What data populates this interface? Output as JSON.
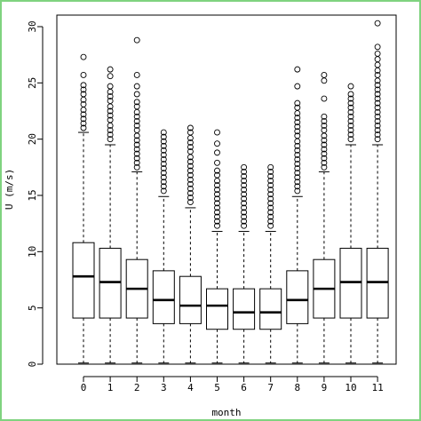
{
  "chart_data": {
    "type": "boxplot",
    "xlabel": "month",
    "ylabel": "U (m/s)",
    "ylim": [
      0,
      30
    ],
    "yticks": [
      "0",
      "5",
      "10",
      "15",
      "20",
      "25",
      "30"
    ],
    "categories": [
      "0",
      "1",
      "2",
      "3",
      "4",
      "5",
      "6",
      "7",
      "8",
      "9",
      "10",
      "11"
    ],
    "boxes": [
      {
        "q1": 4.1,
        "median": 7.8,
        "q3": 10.8,
        "whisker_low": 0.1,
        "whisker_high": 20.6,
        "outliers": [
          21.0,
          21.4,
          21.8,
          22.2,
          22.6,
          23.1,
          23.5,
          24.0,
          24.4,
          24.8,
          25.7,
          27.3
        ]
      },
      {
        "q1": 4.1,
        "median": 7.3,
        "q3": 10.3,
        "whisker_low": 0.1,
        "whisker_high": 19.5,
        "outliers": [
          20.0,
          20.4,
          20.8,
          21.2,
          21.7,
          22.1,
          22.5,
          22.9,
          23.4,
          23.8,
          24.2,
          24.7,
          25.6,
          26.2
        ]
      },
      {
        "q1": 4.1,
        "median": 6.7,
        "q3": 9.3,
        "whisker_low": 0.1,
        "whisker_high": 17.1,
        "outliers": [
          17.5,
          17.9,
          18.3,
          18.7,
          19.1,
          19.5,
          19.9,
          20.3,
          20.8,
          21.2,
          21.6,
          22.0,
          22.4,
          22.9,
          23.3,
          24.0,
          24.7,
          25.7,
          28.8
        ]
      },
      {
        "q1": 3.6,
        "median": 5.7,
        "q3": 8.3,
        "whisker_low": 0.1,
        "whisker_high": 14.9,
        "outliers": [
          15.4,
          15.8,
          16.2,
          16.6,
          17.0,
          17.4,
          17.8,
          18.2,
          18.6,
          19.0,
          19.4,
          19.8,
          20.2,
          20.6
        ]
      },
      {
        "q1": 3.6,
        "median": 5.2,
        "q3": 7.8,
        "whisker_low": 0.1,
        "whisker_high": 13.9,
        "outliers": [
          14.4,
          14.8,
          15.2,
          15.6,
          16.0,
          16.4,
          16.8,
          17.2,
          17.6,
          18.0,
          18.4,
          18.9,
          19.3,
          19.7,
          20.1,
          20.6,
          21.0
        ]
      },
      {
        "q1": 3.1,
        "median": 5.2,
        "q3": 6.7,
        "whisker_low": 0.1,
        "whisker_high": 11.8,
        "outliers": [
          12.3,
          12.7,
          13.1,
          13.5,
          13.9,
          14.3,
          14.7,
          15.1,
          15.5,
          15.9,
          16.3,
          16.8,
          17.2,
          17.9,
          18.8,
          19.6,
          20.6
        ]
      },
      {
        "q1": 3.1,
        "median": 4.6,
        "q3": 6.7,
        "whisker_low": 0.1,
        "whisker_high": 11.8,
        "outliers": [
          12.3,
          12.7,
          13.1,
          13.5,
          13.9,
          14.3,
          14.7,
          15.1,
          15.5,
          15.9,
          16.3,
          16.7,
          17.1,
          17.5
        ]
      },
      {
        "q1": 3.1,
        "median": 4.6,
        "q3": 6.7,
        "whisker_low": 0.1,
        "whisker_high": 11.8,
        "outliers": [
          12.3,
          12.7,
          13.1,
          13.5,
          13.9,
          14.3,
          14.7,
          15.1,
          15.5,
          15.9,
          16.3,
          16.7,
          17.1,
          17.5
        ]
      },
      {
        "q1": 3.6,
        "median": 5.7,
        "q3": 8.3,
        "whisker_low": 0.1,
        "whisker_high": 14.9,
        "outliers": [
          15.4,
          15.8,
          16.2,
          16.6,
          17.0,
          17.4,
          17.8,
          18.2,
          18.6,
          19.0,
          19.4,
          19.8,
          20.3,
          20.7,
          21.1,
          21.5,
          21.9,
          22.3,
          22.8,
          23.2,
          24.7,
          26.2
        ]
      },
      {
        "q1": 4.1,
        "median": 6.7,
        "q3": 9.3,
        "whisker_low": 0.1,
        "whisker_high": 17.1,
        "outliers": [
          17.5,
          17.9,
          18.3,
          18.7,
          19.1,
          19.5,
          19.9,
          20.3,
          20.8,
          21.2,
          21.6,
          22.0,
          23.6,
          25.2,
          25.7
        ]
      },
      {
        "q1": 4.1,
        "median": 7.3,
        "q3": 10.3,
        "whisker_low": 0.1,
        "whisker_high": 19.5,
        "outliers": [
          20.0,
          20.4,
          20.8,
          21.2,
          21.6,
          22.0,
          22.4,
          22.8,
          23.2,
          23.6,
          24.0,
          24.7
        ]
      },
      {
        "q1": 4.1,
        "median": 7.3,
        "q3": 10.3,
        "whisker_low": 0.1,
        "whisker_high": 19.5,
        "outliers": [
          20.0,
          20.4,
          20.8,
          21.2,
          21.6,
          22.0,
          22.4,
          22.8,
          23.2,
          23.6,
          24.0,
          24.4,
          24.8,
          25.2,
          25.7,
          26.1,
          26.6,
          27.1,
          27.6,
          28.2,
          30.3
        ]
      }
    ],
    "grid": false,
    "legend": "none"
  },
  "colors": {
    "frame_border": "#7fd37f",
    "ink": "#000000",
    "background": "#ffffff"
  }
}
